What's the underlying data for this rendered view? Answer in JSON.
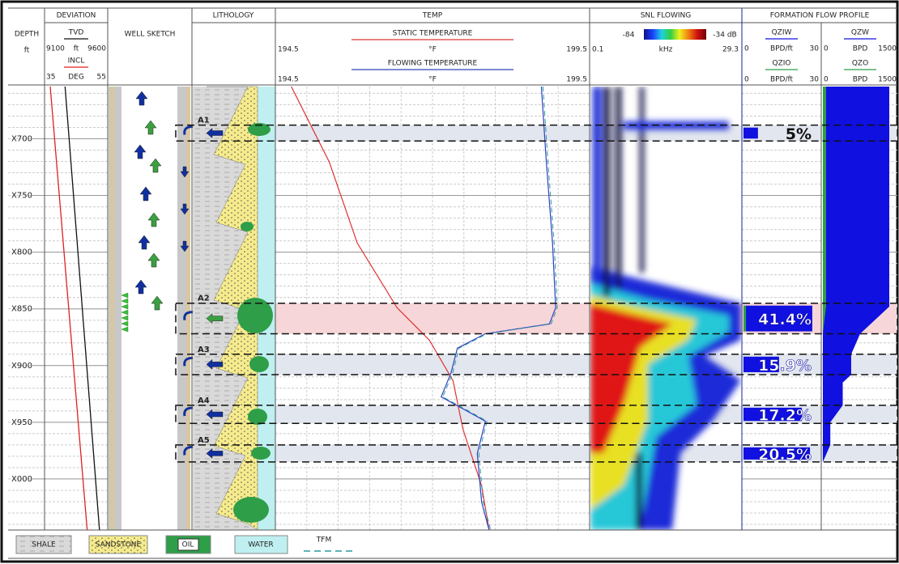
{
  "chart_data": {
    "type": "well-log",
    "depth": {
      "title": "DEPTH",
      "unit": "ft",
      "ylim": [
        654,
        1045
      ],
      "yticks": [
        {
          "value": 700,
          "label": "X700"
        },
        {
          "value": 750,
          "label": "X750"
        },
        {
          "value": 800,
          "label": "X800"
        },
        {
          "value": 850,
          "label": "X850"
        },
        {
          "value": 900,
          "label": "X900"
        },
        {
          "value": 950,
          "label": "X950"
        },
        {
          "value": 1000,
          "label": "X000"
        }
      ]
    },
    "deviation": {
      "title": "DEVIATION",
      "curves": [
        {
          "name": "TVD",
          "unit": "ft",
          "color": "#111111",
          "xlim": [
            9100,
            9600
          ],
          "depth": [
            654,
            1045
          ],
          "values": [
            9253,
            9544
          ]
        },
        {
          "name": "INCL",
          "unit": "DEG",
          "color": "#e02020",
          "xlim": [
            35,
            55
          ],
          "depth": [
            654,
            1045
          ],
          "values": [
            36.1,
            48.6
          ]
        }
      ]
    },
    "well_sketch": {
      "title": "WELL SKETCH"
    },
    "lithology": {
      "title": "LITHOLOGY",
      "legend": [
        "SHALE",
        "SANDSTONE",
        "OIL",
        "WATER",
        "TFM"
      ]
    },
    "temp": {
      "title": "TEMP",
      "curves": [
        {
          "name": "STATIC TEMPERATURE",
          "unit": "°F",
          "color": "#e03030",
          "xlim": [
            194.5,
            199.5
          ],
          "depth": [
            654,
            720.4,
            791.9,
            849,
            877.6,
            913.3,
            956.1,
            1006.1,
            1045
          ],
          "values": [
            194.73,
            195.34,
            195.79,
            196.43,
            196.95,
            197.33,
            197.49,
            197.79,
            197.91
          ]
        },
        {
          "name": "FLOWING TEMPERATURE",
          "unit": "°F",
          "color": "#3040c0",
          "xlim": [
            194.5,
            199.5
          ],
          "depth": [
            654,
            720.4,
            791.9,
            849,
            863.3,
            871.9,
            884.7,
            906.1,
            927.6,
            949,
            977.6,
            1020.4,
            1045
          ],
          "values": [
            198.75,
            198.83,
            198.93,
            198.98,
            198.88,
            197.85,
            197.4,
            197.3,
            197.14,
            197.85,
            197.72,
            197.79,
            197.91
          ]
        }
      ]
    },
    "snl": {
      "title": "SNL FLOWING",
      "zmin": -84,
      "zmax": {
        "value": -34,
        "label": "-34 dB"
      },
      "unit": "kHz",
      "xlim": [
        0.1,
        29.3
      ]
    },
    "flow": {
      "title": "FORMATION FLOW PROFILE",
      "zone_rates": [
        {
          "name": "QZIW",
          "unit": "BPD/ft",
          "color": "#1010e0",
          "xlim": [
            0,
            30
          ],
          "values": [
            5.7,
            27.1,
            14,
            23,
            26.2
          ]
        },
        {
          "name": "QZIO",
          "unit": "BPD/ft",
          "color": "#2e9e48",
          "xlim": [
            0,
            30
          ],
          "values": [
            0,
            1,
            0,
            0,
            0
          ]
        }
      ],
      "cumulative": [
        {
          "name": "QZW",
          "unit": "BPD",
          "color": "#1010e0",
          "xlim": [
            0,
            1500
          ],
          "depth": [
            654,
            848,
            872,
            890,
            908,
            915,
            935,
            950,
            970,
            985,
            1045
          ],
          "values": [
            1337,
            1337,
            750,
            570,
            570,
            400,
            400,
            150,
            150,
            0,
            0
          ]
        },
        {
          "name": "QZO",
          "unit": "BPD",
          "color": "#2e9e48",
          "xlim": [
            0,
            1500
          ],
          "depth": [
            654,
            848,
            872,
            1045
          ],
          "values": [
            65,
            65,
            0,
            0
          ]
        }
      ]
    },
    "zones": {
      "names": [
        "A1",
        "A2",
        "A3",
        "A4",
        "A5"
      ],
      "top": [
        688,
        845,
        890,
        935,
        970
      ],
      "bottom": [
        702,
        872,
        908,
        951,
        985
      ],
      "values": [
        5,
        41.4,
        15.9,
        17.2,
        20.5
      ],
      "value_labels": [
        "5%",
        "41.4%",
        "15.9%",
        "17.2%",
        "20.5%"
      ]
    }
  }
}
